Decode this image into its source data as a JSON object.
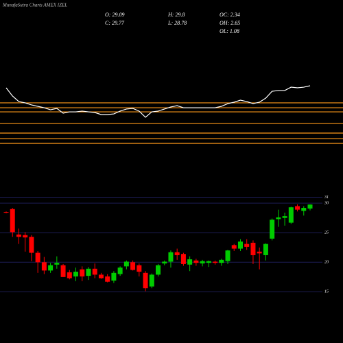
{
  "chart_data": {
    "type": "candlestick",
    "title": "MunafaSutra Charts AMEX IZEL",
    "stats": [
      "O: 29.09",
      "H: 29.8",
      "OC: 2.34",
      "C: 29.77",
      "L: 28.78",
      "OH: 2.65",
      "OL: 1.08"
    ],
    "open": [
      28.5,
      29.0,
      24.7,
      24.6,
      24.3,
      21.6,
      20.0,
      18.6,
      19.6,
      19.5,
      18.3,
      17.6,
      18.8,
      17.7,
      18.9,
      17.9,
      17.6,
      16.9,
      18.0,
      19.3,
      20.0,
      19.5,
      18.2,
      15.9,
      17.9,
      19.8,
      20.1,
      21.7,
      21.4,
      19.6,
      20.3,
      19.8,
      19.9,
      20.1,
      19.9,
      20.2,
      22.9,
      22.3,
      23.1,
      23.3,
      21.8,
      21.2,
      24.0,
      27.3,
      27.5,
      26.7,
      29.5,
      28.7,
      29.09
    ],
    "high": [
      28.6,
      29.2,
      25.7,
      25.1,
      24.6,
      21.9,
      20.9,
      19.9,
      21.0,
      19.7,
      18.7,
      19.1,
      19.3,
      19.2,
      19.8,
      18.2,
      18.0,
      18.5,
      19.3,
      20.3,
      20.3,
      19.8,
      18.5,
      18.1,
      19.7,
      20.3,
      22.0,
      22.3,
      21.6,
      21.0,
      20.6,
      20.4,
      20.3,
      20.3,
      20.6,
      22.1,
      23.1,
      23.9,
      23.9,
      23.7,
      22.5,
      23.2,
      27.4,
      28.9,
      28.4,
      29.4,
      29.8,
      29.5,
      29.8
    ],
    "low": [
      28.3,
      24.3,
      23.1,
      21.8,
      20.2,
      18.2,
      18.0,
      18.2,
      18.9,
      17.5,
      17.1,
      16.8,
      16.8,
      17.0,
      17.3,
      17.2,
      16.6,
      16.5,
      17.7,
      18.8,
      18.6,
      17.6,
      15.1,
      15.6,
      17.6,
      19.5,
      19.1,
      20.4,
      19.4,
      18.5,
      19.4,
      19.3,
      19.2,
      19.6,
      19.4,
      19.7,
      21.9,
      21.9,
      22.1,
      19.7,
      18.8,
      20.3,
      23.7,
      26.0,
      26.2,
      26.5,
      28.6,
      27.9,
      28.78
    ],
    "close": [
      28.4,
      25.1,
      24.3,
      24.2,
      21.6,
      20.0,
      18.6,
      19.5,
      19.9,
      17.5,
      17.3,
      18.4,
      17.6,
      18.9,
      17.9,
      17.3,
      16.7,
      18.2,
      19.1,
      20.1,
      18.7,
      18.4,
      15.6,
      17.9,
      19.5,
      20.1,
      21.7,
      21.2,
      19.7,
      20.5,
      19.9,
      20.2,
      20.2,
      19.9,
      20.4,
      22.0,
      22.3,
      23.5,
      22.6,
      21.2,
      21.5,
      23.1,
      27.2,
      27.6,
      27.8,
      29.3,
      28.9,
      29.2,
      29.77
    ],
    "up_color": "#00cc00",
    "down_color": "#ff0000",
    "ylim": [
      13.3,
      34.2
    ],
    "yticks": [
      31,
      30,
      25,
      20,
      15
    ],
    "grid_color": "#1c1c55",
    "indicator": {
      "values": [
        85,
        75,
        68.3,
        66.7,
        64.2,
        62.5,
        60.8,
        58.3,
        60,
        54.2,
        55.8,
        55.8,
        56.7,
        55.8,
        55,
        52.5,
        52.5,
        53.3,
        56.7,
        59.2,
        60,
        56.7,
        49.2,
        55.8,
        56.7,
        59.2,
        61.7,
        63.3,
        60.8,
        60.8,
        60.8,
        60.8,
        60.8,
        60.8,
        62.5,
        65.8,
        67.5,
        70,
        68.3,
        65.8,
        67.5,
        72.5,
        80.8,
        81.7,
        81.7,
        85.8,
        85,
        85.8,
        87.5
      ],
      "color": "#ffffff",
      "ylim": [
        0,
        100
      ],
      "levels": [
        66.7,
        60.8,
        55.8,
        41.7,
        30,
        23.3,
        17.5
      ],
      "level_color": "#ff9a1a"
    }
  }
}
